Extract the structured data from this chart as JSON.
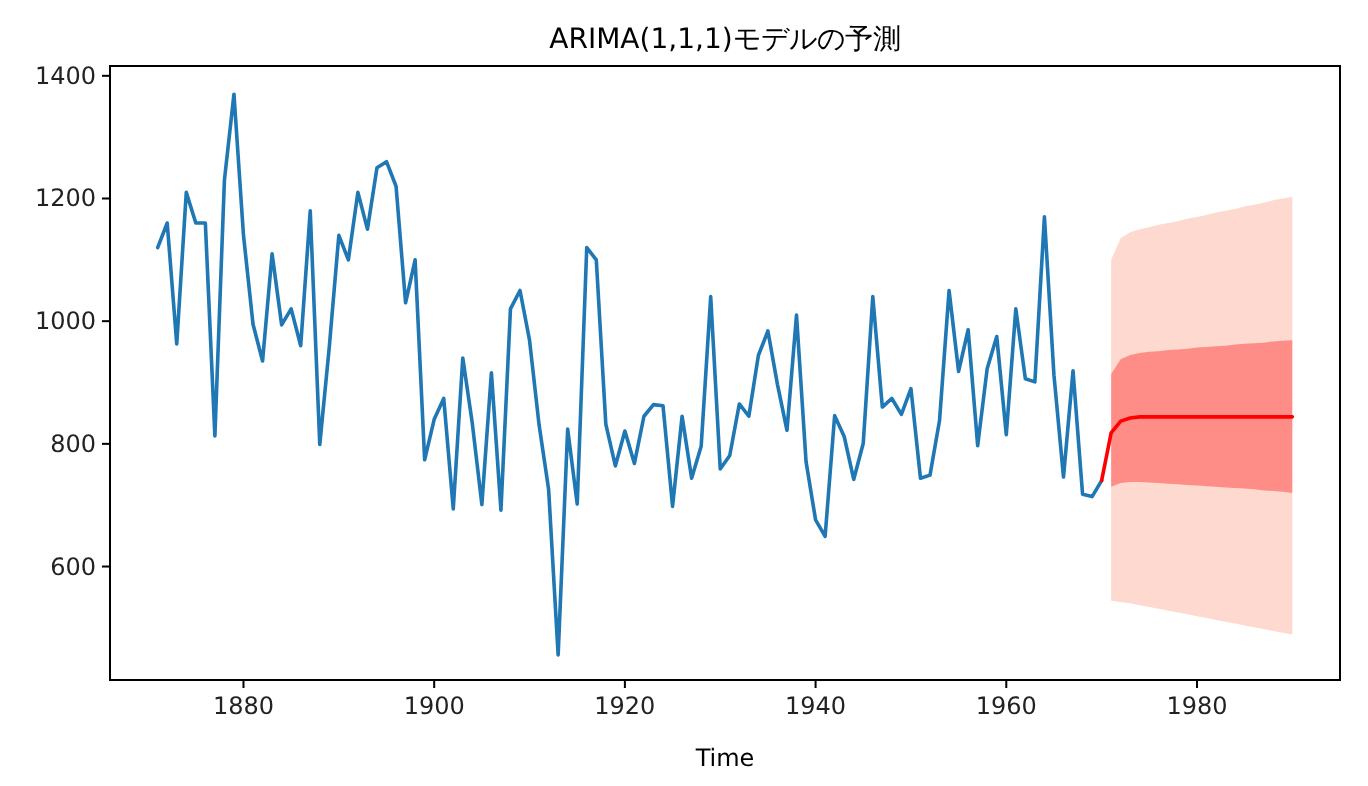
{
  "chart_data": {
    "type": "line",
    "title": "ARIMA(1,1,1)モデルの予測",
    "xlabel": "Time",
    "xlim": [
      1866,
      1995
    ],
    "ylim": [
      415,
      1416
    ],
    "xticks": [
      1880,
      1900,
      1920,
      1940,
      1960,
      1980
    ],
    "yticks": [
      600,
      800,
      1000,
      1200,
      1400
    ],
    "grid": false,
    "series": [
      {
        "color": "#1f77b4",
        "x": [
          1871,
          1872,
          1873,
          1874,
          1875,
          1876,
          1877,
          1878,
          1879,
          1880,
          1881,
          1882,
          1883,
          1884,
          1885,
          1886,
          1887,
          1888,
          1889,
          1890,
          1891,
          1892,
          1893,
          1894,
          1895,
          1896,
          1897,
          1898,
          1899,
          1900,
          1901,
          1902,
          1903,
          1904,
          1905,
          1906,
          1907,
          1908,
          1909,
          1910,
          1911,
          1912,
          1913,
          1914,
          1915,
          1916,
          1917,
          1918,
          1919,
          1920,
          1921,
          1922,
          1923,
          1924,
          1925,
          1926,
          1927,
          1928,
          1929,
          1930,
          1931,
          1932,
          1933,
          1934,
          1935,
          1936,
          1937,
          1938,
          1939,
          1940,
          1941,
          1942,
          1943,
          1944,
          1945,
          1946,
          1947,
          1948,
          1949,
          1950,
          1951,
          1952,
          1953,
          1954,
          1955,
          1956,
          1957,
          1958,
          1959,
          1960,
          1961,
          1962,
          1963,
          1964,
          1965,
          1966,
          1967,
          1968,
          1969,
          1970
        ],
        "values": [
          1120,
          1160,
          963,
          1210,
          1160,
          1160,
          813,
          1230,
          1370,
          1140,
          995,
          935,
          1110,
          994,
          1020,
          960,
          1180,
          799,
          958,
          1140,
          1100,
          1210,
          1150,
          1250,
          1260,
          1220,
          1030,
          1100,
          774,
          840,
          874,
          694,
          940,
          833,
          701,
          916,
          692,
          1020,
          1050,
          969,
          831,
          726,
          456,
          824,
          702,
          1120,
          1100,
          832,
          764,
          821,
          768,
          845,
          864,
          862,
          698,
          845,
          744,
          796,
          1040,
          759,
          781,
          865,
          845,
          944,
          984,
          897,
          822,
          1010,
          771,
          676,
          649,
          846,
          812,
          742,
          801,
          1040,
          860,
          874,
          848,
          890,
          744,
          749,
          838,
          1050,
          918,
          986,
          797,
          923,
          975,
          815,
          1020,
          906,
          901,
          1170,
          912,
          746,
          919,
          718,
          714,
          740
        ]
      },
      {
        "color": "#fdd9cf",
        "x": [
          1971,
          1972,
          1973,
          1974,
          1975,
          1976,
          1977,
          1978,
          1979,
          1980,
          1981,
          1982,
          1983,
          1984,
          1985,
          1986,
          1987,
          1988,
          1989,
          1990
        ],
        "values": [
          null,
          null,
          null,
          null,
          null,
          null,
          null,
          null,
          null,
          null,
          null,
          null,
          null,
          null,
          null,
          null,
          null,
          null,
          null,
          null
        ],
        "lower": [
          544,
          542,
          540,
          537,
          534,
          531,
          528,
          525,
          522,
          519,
          516,
          513,
          510,
          507,
          504,
          501,
          498,
          495,
          492,
          489
        ],
        "upper": [
          1100,
          1135,
          1145,
          1150,
          1153,
          1157,
          1160,
          1163,
          1167,
          1170,
          1173,
          1177,
          1180,
          1183,
          1187,
          1190,
          1193,
          1197,
          1200,
          1203
        ]
      },
      {
        "color": "#ff0000",
        "x": [
          1970,
          1971,
          1972,
          1973,
          1974,
          1975,
          1976,
          1977,
          1978,
          1979,
          1980,
          1981,
          1982,
          1983,
          1984,
          1985,
          1986,
          1987,
          1988,
          1989,
          1990
        ],
        "values": [
          740,
          818,
          837,
          842,
          844,
          844,
          844,
          844,
          844,
          844,
          844,
          844,
          844,
          844,
          844,
          844,
          844,
          844,
          844,
          844,
          844
        ],
        "lower": [
          null,
          730,
          736,
          738,
          738,
          737,
          736,
          735,
          734,
          733,
          732,
          731,
          730,
          729,
          728,
          727,
          726,
          724,
          723,
          722,
          720
        ],
        "upper": [
          null,
          914,
          938,
          945,
          948,
          950,
          951,
          953,
          954,
          955,
          957,
          958,
          959,
          960,
          962,
          963,
          964,
          965,
          967,
          968,
          969
        ]
      }
    ]
  }
}
